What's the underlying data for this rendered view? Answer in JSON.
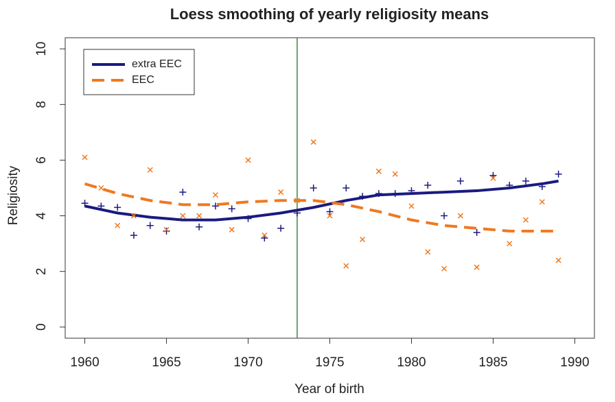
{
  "chart_data": {
    "type": "scatter",
    "title": "Loess smoothing of yearly religiosity means",
    "x_label": "Year of birth",
    "y_label": "Religiosity",
    "x": [
      1960,
      1961,
      1962,
      1963,
      1964,
      1965,
      1966,
      1967,
      1968,
      1969,
      1970,
      1971,
      1972,
      1973,
      1974,
      1975,
      1976,
      1977,
      1978,
      1979,
      1980,
      1981,
      1982,
      1983,
      1984,
      1985,
      1986,
      1987,
      1988,
      1989
    ],
    "smooth_x": [
      1960,
      1962,
      1964,
      1966,
      1968,
      1970,
      1972,
      1974,
      1976,
      1978,
      1980,
      1982,
      1984,
      1986,
      1988,
      1989
    ],
    "series": [
      {
        "name": "extra EEC",
        "color": "#1a1a80",
        "marker": "plus",
        "dashed": false,
        "values": [
          4.45,
          4.35,
          4.3,
          3.3,
          3.65,
          3.45,
          4.85,
          3.6,
          4.35,
          4.25,
          3.9,
          3.2,
          3.55,
          4.1,
          5.0,
          4.15,
          5.0,
          4.7,
          4.8,
          4.8,
          4.9,
          5.1,
          4.0,
          5.25,
          3.4,
          5.45,
          5.1,
          5.25,
          5.05,
          5.5
        ],
        "smooth": [
          4.35,
          4.1,
          3.95,
          3.85,
          3.85,
          3.95,
          4.1,
          4.3,
          4.55,
          4.75,
          4.8,
          4.85,
          4.9,
          5.0,
          5.15,
          5.25
        ]
      },
      {
        "name": "EEC",
        "color": "#f07820",
        "marker": "cross",
        "dashed": true,
        "values": [
          6.1,
          5.0,
          3.65,
          4.0,
          5.65,
          3.5,
          4.0,
          4.0,
          4.75,
          3.5,
          6.0,
          3.3,
          4.85,
          4.55,
          6.65,
          4.0,
          2.2,
          3.15,
          5.6,
          5.5,
          4.35,
          2.7,
          2.1,
          4.0,
          2.15,
          5.35,
          3.0,
          3.85,
          4.5,
          2.4
        ],
        "smooth": [
          5.15,
          4.8,
          4.55,
          4.4,
          4.4,
          4.5,
          4.55,
          4.55,
          4.4,
          4.15,
          3.85,
          3.65,
          3.55,
          3.45,
          3.45,
          3.45
        ]
      }
    ],
    "vline": 1973,
    "vline_color": "#3a8a3a",
    "xlim": [
      1958.8,
      1991.2
    ],
    "ylim": [
      -0.4,
      10.4
    ],
    "xticks": [
      1960,
      1965,
      1970,
      1975,
      1980,
      1985,
      1990
    ],
    "yticks": [
      0,
      2,
      4,
      6,
      8,
      10
    ],
    "legend": "top-left"
  }
}
